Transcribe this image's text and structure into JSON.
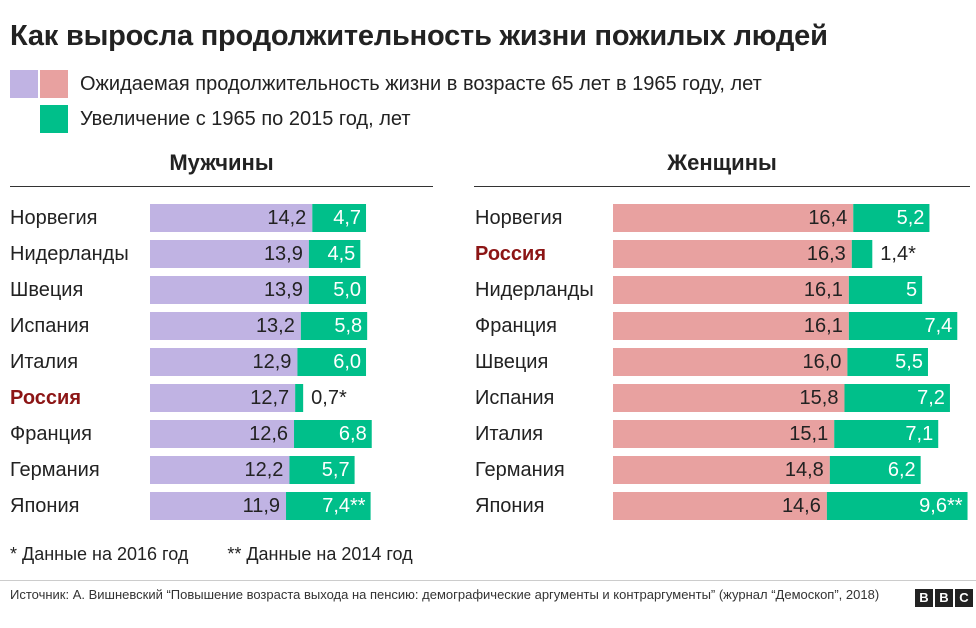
{
  "title": "Как выросла продолжительность жизни пожилых людей",
  "legend": {
    "base_label": "Ожидаемая продолжительность жизни в возрасте 65 лет в 1965 году, лет",
    "increase_label": "Увеличение с 1965 по 2015 год, лет"
  },
  "colors": {
    "men_base": "#c0b3e3",
    "women_base": "#e8a1a0",
    "increase": "#00bf8a",
    "highlight_text": "#8c1515"
  },
  "footnotes": {
    "note1": "* Данные на 2016 год",
    "note2": "** Данные на 2014 год"
  },
  "source": "Источник: А. Вишневский “Повышение возраста выхода на пенсию: демографические аргументы и контраргументы” (журнал “Демоскоп”, 2018)",
  "brand": [
    "B",
    "B",
    "C"
  ],
  "chart_data": [
    {
      "type": "bar",
      "orientation": "horizontal",
      "stacked": true,
      "title": "Мужчины",
      "categories": [
        "Норвегия",
        "Нидерланды",
        "Швеция",
        "Испания",
        "Италия",
        "Россия",
        "Франция",
        "Германия",
        "Япония"
      ],
      "highlight": [
        "Россия"
      ],
      "series": [
        {
          "name": "Ожидаемая продолжительность жизни в возрасте 65 лет в 1965 году, лет",
          "values": [
            14.2,
            13.9,
            13.9,
            13.2,
            12.9,
            12.7,
            12.6,
            12.2,
            11.9
          ],
          "labels": [
            "14,2",
            "13,9",
            "13,9",
            "13,2",
            "12,9",
            "12,7",
            "12,6",
            "12,2",
            "11,9"
          ]
        },
        {
          "name": "Увеличение с 1965 по 2015 год, лет",
          "values": [
            4.7,
            4.5,
            5.0,
            5.8,
            6.0,
            0.7,
            6.8,
            5.7,
            7.4
          ],
          "labels": [
            "4,7",
            "4,5",
            "5,0",
            "5,8",
            "6,0",
            "0,7*",
            "6,8",
            "5,7",
            "7,4**"
          ]
        }
      ],
      "xlim": [
        0,
        20.5
      ]
    },
    {
      "type": "bar",
      "orientation": "horizontal",
      "stacked": true,
      "title": "Женщины",
      "categories": [
        "Норвегия",
        "Россия",
        "Нидерланды",
        "Франция",
        "Швеция",
        "Испания",
        "Италия",
        "Германия",
        "Япония"
      ],
      "highlight": [
        "Россия"
      ],
      "series": [
        {
          "name": "Ожидаемая продолжительность жизни в возрасте 65 лет в 1965 году, лет",
          "values": [
            16.4,
            16.3,
            16.1,
            16.1,
            16.0,
            15.8,
            15.1,
            14.8,
            14.6
          ],
          "labels": [
            "16,4",
            "16,3",
            "16,1",
            "16,1",
            "16,0",
            "15,8",
            "15,1",
            "14,8",
            "14,6"
          ]
        },
        {
          "name": "Увеличение с 1965 по 2015 год, лет",
          "values": [
            5.2,
            1.4,
            5.0,
            7.4,
            5.5,
            7.2,
            7.1,
            6.2,
            9.6
          ],
          "labels": [
            "5,2",
            "1,4*",
            "5",
            "7,4",
            "5,5",
            "7,2",
            "7,1",
            "6,2",
            "9,6**"
          ]
        }
      ],
      "xlim": [
        0,
        24.2
      ]
    }
  ]
}
